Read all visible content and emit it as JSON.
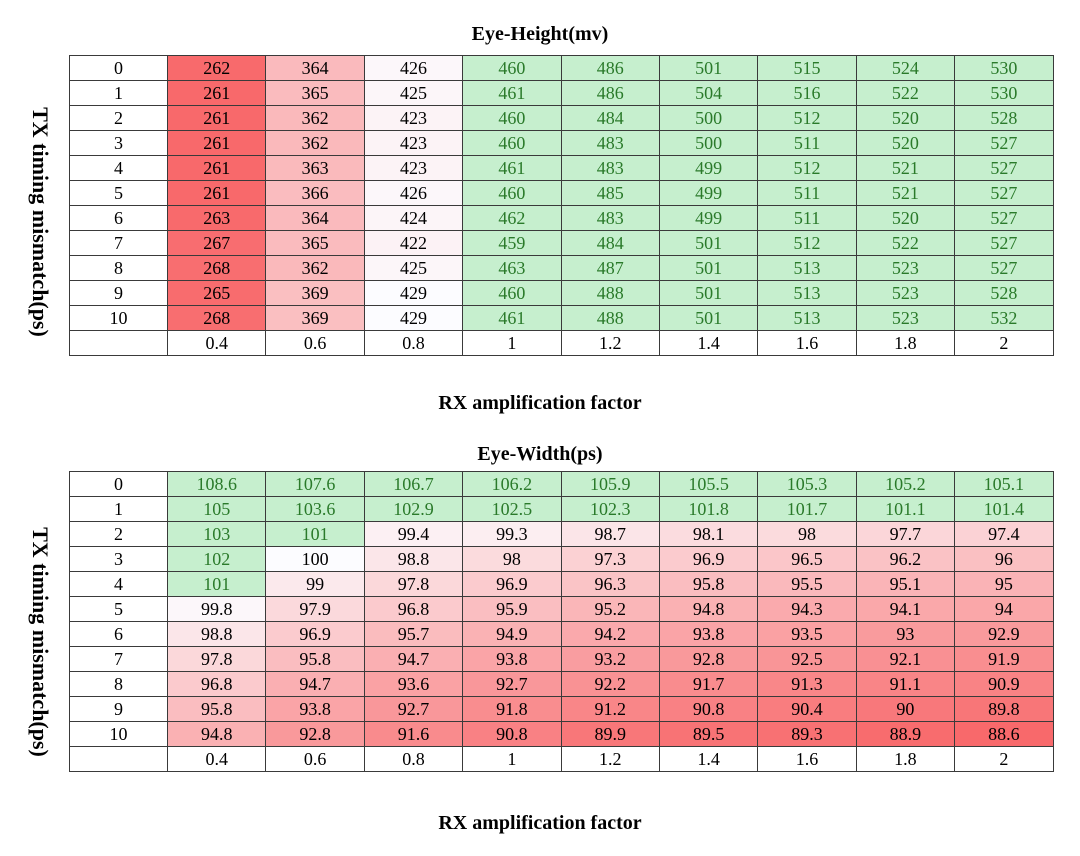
{
  "colors": {
    "high_green_fill": "#c6efce",
    "high_green_text": "#2a7a2a",
    "red_strong": "#f8696b",
    "neutral": "#fcfcff",
    "border": "#3a3a3a"
  },
  "chart_data": [
    {
      "type": "heatmap",
      "title": "Eye-Height(mv)",
      "xlabel": "RX amplification  factor",
      "ylabel": "TX timing mismatch(ps)",
      "x": [
        "0.4",
        "0.6",
        "0.8",
        "1",
        "1.2",
        "1.4",
        "1.6",
        "1.8",
        "2"
      ],
      "y": [
        "0",
        "1",
        "2",
        "3",
        "4",
        "5",
        "6",
        "7",
        "8",
        "9",
        "10"
      ],
      "values": [
        [
          262,
          364,
          426,
          460,
          486,
          501,
          515,
          524,
          530
        ],
        [
          261,
          365,
          425,
          461,
          486,
          504,
          516,
          522,
          530
        ],
        [
          261,
          362,
          423,
          460,
          484,
          500,
          512,
          520,
          528
        ],
        [
          261,
          362,
          423,
          460,
          483,
          500,
          511,
          520,
          527
        ],
        [
          261,
          363,
          423,
          461,
          483,
          499,
          512,
          521,
          527
        ],
        [
          261,
          366,
          426,
          460,
          485,
          499,
          511,
          521,
          527
        ],
        [
          263,
          364,
          424,
          462,
          483,
          499,
          511,
          520,
          527
        ],
        [
          267,
          365,
          422,
          459,
          484,
          501,
          512,
          522,
          527
        ],
        [
          268,
          362,
          425,
          463,
          487,
          501,
          513,
          523,
          527
        ],
        [
          265,
          369,
          429,
          460,
          488,
          501,
          513,
          523,
          528
        ],
        [
          268,
          369,
          429,
          461,
          488,
          501,
          513,
          523,
          532
        ]
      ],
      "threshold": 450
    },
    {
      "type": "heatmap",
      "title": "Eye-Width(ps)",
      "xlabel": "RX amplification  factor",
      "ylabel": "TX timing mismatch(ps)",
      "x": [
        "0.4",
        "0.6",
        "0.8",
        "1",
        "1.2",
        "1.4",
        "1.6",
        "1.8",
        "2"
      ],
      "y": [
        "0",
        "1",
        "2",
        "3",
        "4",
        "5",
        "6",
        "7",
        "8",
        "9",
        "10"
      ],
      "values": [
        [
          108.6,
          107.6,
          106.7,
          106.2,
          105.9,
          105.5,
          105.3,
          105.2,
          105.1
        ],
        [
          105,
          103.6,
          102.9,
          102.5,
          102.3,
          101.8,
          101.7,
          101.1,
          101.4
        ],
        [
          103,
          101,
          99.4,
          99.3,
          98.7,
          98.1,
          98,
          97.7,
          97.4
        ],
        [
          102,
          100,
          98.8,
          98,
          97.3,
          96.9,
          96.5,
          96.2,
          96
        ],
        [
          101,
          99,
          97.8,
          96.9,
          96.3,
          95.8,
          95.5,
          95.1,
          95
        ],
        [
          99.8,
          97.9,
          96.8,
          95.9,
          95.2,
          94.8,
          94.3,
          94.1,
          94
        ],
        [
          98.8,
          96.9,
          95.7,
          94.9,
          94.2,
          93.8,
          93.5,
          93,
          92.9
        ],
        [
          97.8,
          95.8,
          94.7,
          93.8,
          93.2,
          92.8,
          92.5,
          92.1,
          91.9
        ],
        [
          96.8,
          94.7,
          93.6,
          92.7,
          92.2,
          91.7,
          91.3,
          91.1,
          90.9
        ],
        [
          95.8,
          93.8,
          92.7,
          91.8,
          91.2,
          90.8,
          90.4,
          90,
          89.8
        ],
        [
          94.8,
          92.8,
          91.6,
          90.8,
          89.9,
          89.5,
          89.3,
          88.9,
          88.6
        ]
      ],
      "threshold": 100.5
    }
  ]
}
